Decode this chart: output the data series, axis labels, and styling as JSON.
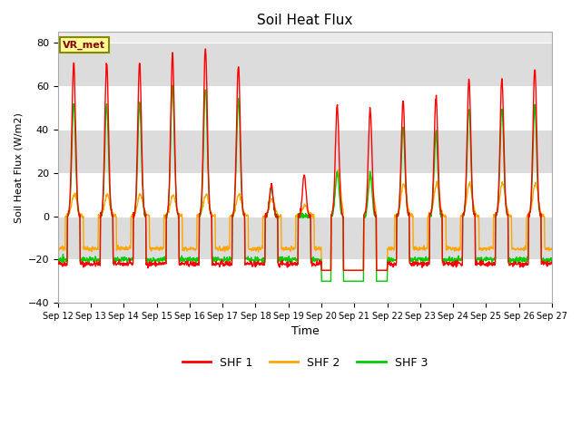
{
  "title": "Soil Heat Flux",
  "ylabel": "Soil Heat Flux (W/m2)",
  "xlabel": "Time",
  "ylim": [
    -40,
    85
  ],
  "background_color": "#ebebeb",
  "band_color_light": "#ffffff",
  "band_color_dark": "#dcdcdc",
  "colors": {
    "SHF1": "#ff0000",
    "SHF2": "#ffa500",
    "SHF3": "#00cc00"
  },
  "legend_labels": [
    "SHF 1",
    "SHF 2",
    "SHF 3"
  ],
  "vr_met_label": "VR_met",
  "xtick_labels": [
    "Sep 12",
    "Sep 13",
    "Sep 14",
    "Sep 15",
    "Sep 16",
    "Sep 17",
    "Sep 18",
    "Sep 19",
    "Sep 20",
    "Sep 21",
    "Sep 22",
    "Sep 23",
    "Sep 24",
    "Sep 25",
    "Sep 26",
    "Sep 27"
  ],
  "ytick_values": [
    -40,
    -20,
    0,
    20,
    40,
    60,
    80
  ],
  "day_peaks_shf1": [
    71,
    71,
    71,
    75,
    78,
    70,
    14,
    19,
    51,
    49,
    53,
    55,
    63,
    63,
    68
  ],
  "day_peaks_shf2": [
    10,
    10,
    10,
    10,
    10,
    10,
    8,
    5,
    21,
    18,
    15,
    15,
    15,
    15,
    15
  ],
  "day_peaks_shf3": [
    52,
    52,
    52,
    60,
    59,
    54,
    13,
    0,
    20,
    20,
    41,
    38,
    50,
    50,
    51
  ],
  "night_shf1": -22,
  "night_shf2": -15,
  "night_shf3": -20,
  "deep_night_shf1": -26,
  "deep_night_shf2": -26,
  "deep_night_shf3": -32
}
